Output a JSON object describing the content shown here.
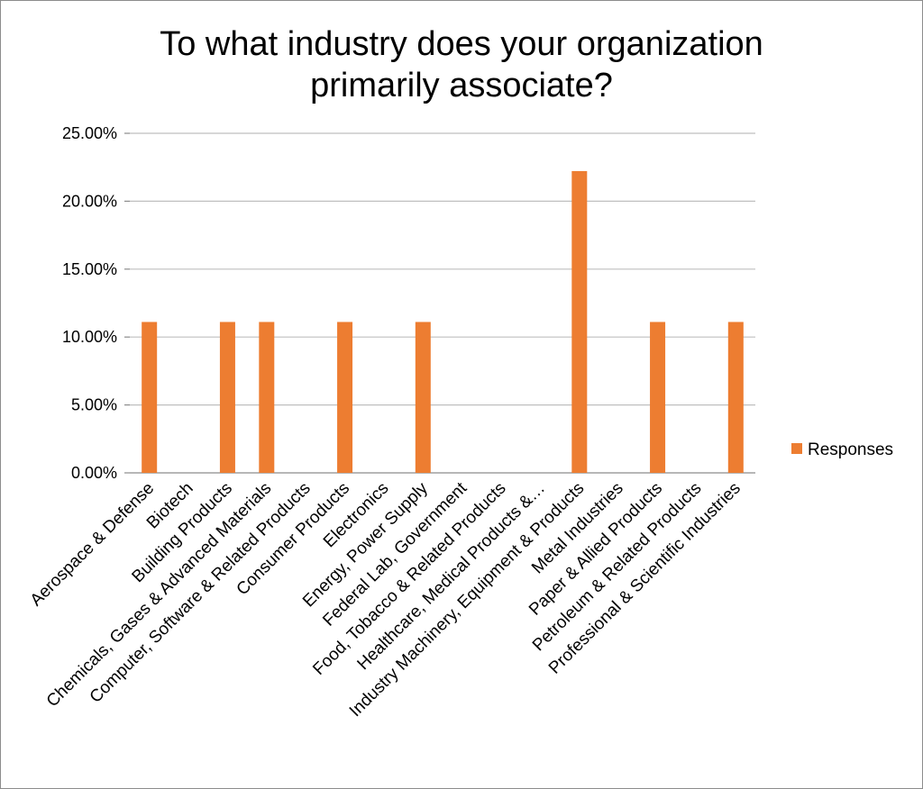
{
  "chart_data": {
    "type": "bar",
    "title_lines": [
      "To what industry does your organization",
      "primarily associate?"
    ],
    "categories": [
      "Aerospace & Defense",
      "Biotech",
      "Building Products",
      "Chemicals, Gases & Advanced Materials",
      "Computer, Software & Related Products",
      "Consumer Products",
      "Electronics",
      "Energy, Power Supply",
      "Federal Lab, Government",
      "Food, Tobacco & Related Products",
      "Healthcare, Medical Products &…",
      "Industry Machinery, Equipment & Products",
      "Metal Industries",
      "Paper & Allied Products",
      "Petroleum & Related Products",
      "Professional & Scientific Industries"
    ],
    "series": [
      {
        "name": "Responses",
        "color": "#ED7D31",
        "values": [
          11.11,
          0,
          11.11,
          11.11,
          0,
          11.11,
          0,
          11.11,
          0,
          0,
          0,
          22.22,
          0,
          11.11,
          0,
          11.11
        ]
      }
    ],
    "y_ticks": [
      "0.00%",
      "5.00%",
      "10.00%",
      "15.00%",
      "20.00%",
      "25.00%"
    ],
    "ylim": [
      0,
      25
    ],
    "grid": true,
    "legend_position": "right"
  }
}
